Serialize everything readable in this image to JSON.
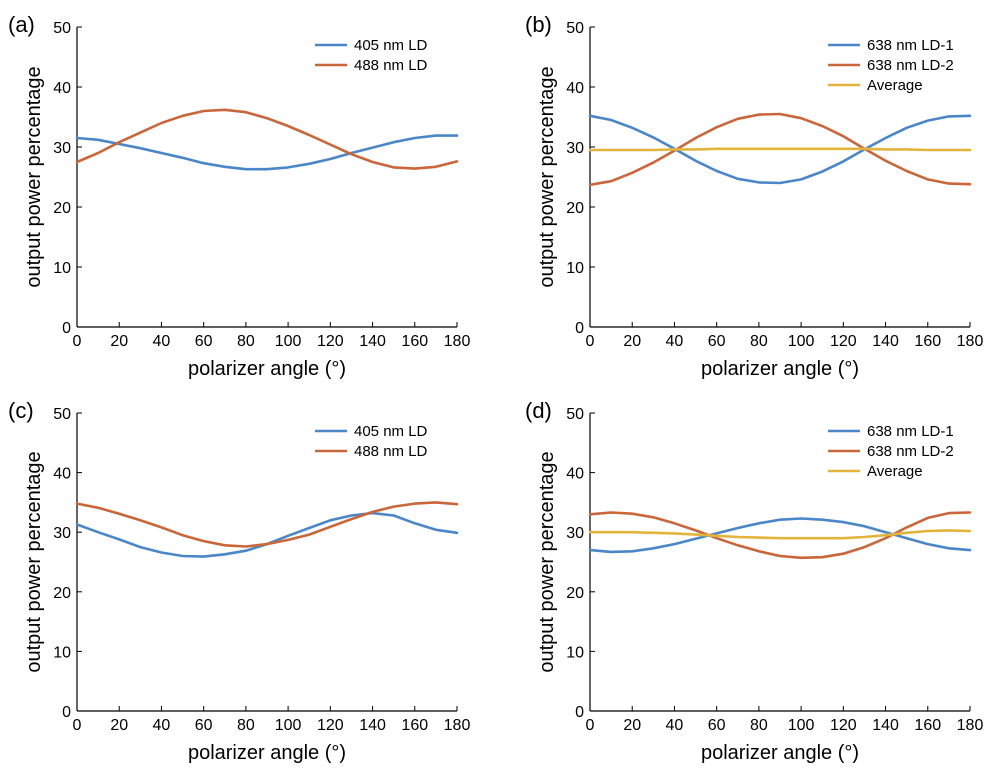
{
  "chart_data": [
    {
      "panel": "(a)",
      "type": "line",
      "xlabel": "polarizer angle (°)",
      "ylabel": "output power percentage",
      "xlim": [
        0,
        180
      ],
      "ylim": [
        0,
        50
      ],
      "xticks": [
        0,
        20,
        40,
        60,
        80,
        100,
        120,
        140,
        160,
        180
      ],
      "yticks": [
        0,
        10,
        20,
        30,
        40,
        50
      ],
      "legend": "top-right",
      "x": [
        0,
        10,
        20,
        30,
        40,
        50,
        60,
        70,
        80,
        90,
        100,
        110,
        120,
        130,
        140,
        150,
        160,
        170,
        180
      ],
      "series": [
        {
          "name": "405 nm LD",
          "color": "#4a86c8",
          "values": [
            31.5,
            31.2,
            30.5,
            29.8,
            29.0,
            28.2,
            27.3,
            26.7,
            26.3,
            26.3,
            26.6,
            27.2,
            28.0,
            29.0,
            29.9,
            30.8,
            31.5,
            31.9,
            31.9
          ]
        },
        {
          "name": "488 nm LD",
          "color": "#c9663a",
          "values": [
            27.5,
            29.0,
            30.8,
            32.4,
            34.0,
            35.2,
            36.0,
            36.2,
            35.8,
            34.8,
            33.5,
            32.0,
            30.4,
            28.8,
            27.5,
            26.6,
            26.4,
            26.7,
            27.6
          ]
        }
      ]
    },
    {
      "panel": "(b)",
      "type": "line",
      "xlabel": "polarizer angle (°)",
      "ylabel": "output power percentage",
      "xlim": [
        0,
        180
      ],
      "ylim": [
        0,
        50
      ],
      "xticks": [
        0,
        20,
        40,
        60,
        80,
        100,
        120,
        140,
        160,
        180
      ],
      "yticks": [
        0,
        10,
        20,
        30,
        40,
        50
      ],
      "legend": "top-right",
      "x": [
        0,
        10,
        20,
        30,
        40,
        50,
        60,
        70,
        80,
        90,
        100,
        110,
        120,
        130,
        140,
        150,
        160,
        170,
        180
      ],
      "series": [
        {
          "name": "638 nm LD-1",
          "color": "#4a86c8",
          "values": [
            35.2,
            34.5,
            33.2,
            31.6,
            29.7,
            27.7,
            26.0,
            24.7,
            24.1,
            24.0,
            24.6,
            25.9,
            27.6,
            29.6,
            31.5,
            33.2,
            34.4,
            35.1,
            35.2
          ]
        },
        {
          "name": "638 nm LD-2",
          "color": "#c9663a",
          "values": [
            23.7,
            24.3,
            25.7,
            27.4,
            29.4,
            31.5,
            33.3,
            34.7,
            35.4,
            35.5,
            34.8,
            33.5,
            31.8,
            29.7,
            27.7,
            26.0,
            24.6,
            23.9,
            23.8
          ]
        },
        {
          "name": "Average",
          "color": "#e3b43c",
          "values": [
            29.5,
            29.5,
            29.5,
            29.5,
            29.6,
            29.6,
            29.7,
            29.7,
            29.7,
            29.7,
            29.7,
            29.7,
            29.7,
            29.7,
            29.6,
            29.6,
            29.5,
            29.5,
            29.5
          ]
        }
      ]
    },
    {
      "panel": "(c)",
      "type": "line",
      "xlabel": "polarizer angle (°)",
      "ylabel": "output power percentage",
      "xlim": [
        0,
        180
      ],
      "ylim": [
        0,
        50
      ],
      "xticks": [
        0,
        20,
        40,
        60,
        80,
        100,
        120,
        140,
        160,
        180
      ],
      "yticks": [
        0,
        10,
        20,
        30,
        40,
        50
      ],
      "legend": "top-right",
      "x": [
        0,
        10,
        20,
        30,
        40,
        50,
        60,
        70,
        80,
        90,
        100,
        110,
        120,
        130,
        140,
        150,
        160,
        170,
        180
      ],
      "series": [
        {
          "name": "405 nm LD",
          "color": "#4a86c8",
          "values": [
            31.3,
            30.0,
            28.8,
            27.5,
            26.6,
            26.0,
            25.9,
            26.3,
            26.9,
            28.0,
            29.4,
            30.7,
            32.0,
            32.8,
            33.2,
            32.8,
            31.5,
            30.4,
            29.9
          ]
        },
        {
          "name": "488 nm LD",
          "color": "#c9663a",
          "values": [
            34.8,
            34.1,
            33.1,
            32.0,
            30.8,
            29.5,
            28.5,
            27.8,
            27.6,
            28.0,
            28.7,
            29.6,
            30.9,
            32.2,
            33.4,
            34.3,
            34.8,
            35.0,
            34.7
          ]
        }
      ]
    },
    {
      "panel": "(d)",
      "type": "line",
      "xlabel": "polarizer angle (°)",
      "ylabel": "output power percentage",
      "xlim": [
        0,
        180
      ],
      "ylim": [
        0,
        50
      ],
      "xticks": [
        0,
        20,
        40,
        60,
        80,
        100,
        120,
        140,
        160,
        180
      ],
      "yticks": [
        0,
        10,
        20,
        30,
        40,
        50
      ],
      "legend": "top-right",
      "x": [
        0,
        10,
        20,
        30,
        40,
        50,
        60,
        70,
        80,
        90,
        100,
        110,
        120,
        130,
        140,
        150,
        160,
        170,
        180
      ],
      "series": [
        {
          "name": "638 nm LD-1",
          "color": "#4a86c8",
          "values": [
            27.0,
            26.7,
            26.8,
            27.3,
            28.0,
            28.9,
            29.8,
            30.7,
            31.5,
            32.1,
            32.3,
            32.1,
            31.7,
            31.0,
            30.0,
            29.0,
            28.0,
            27.3,
            27.0
          ]
        },
        {
          "name": "638 nm LD-2",
          "color": "#c9663a",
          "values": [
            33.0,
            33.3,
            33.1,
            32.5,
            31.5,
            30.3,
            29.0,
            27.8,
            26.8,
            26.0,
            25.7,
            25.8,
            26.4,
            27.5,
            29.0,
            30.8,
            32.4,
            33.2,
            33.3
          ]
        },
        {
          "name": "Average",
          "color": "#e3b43c",
          "values": [
            30.0,
            30.0,
            30.0,
            29.9,
            29.8,
            29.6,
            29.4,
            29.2,
            29.1,
            29.0,
            29.0,
            29.0,
            29.0,
            29.2,
            29.5,
            29.9,
            30.2,
            30.3,
            30.2
          ]
        }
      ]
    }
  ]
}
